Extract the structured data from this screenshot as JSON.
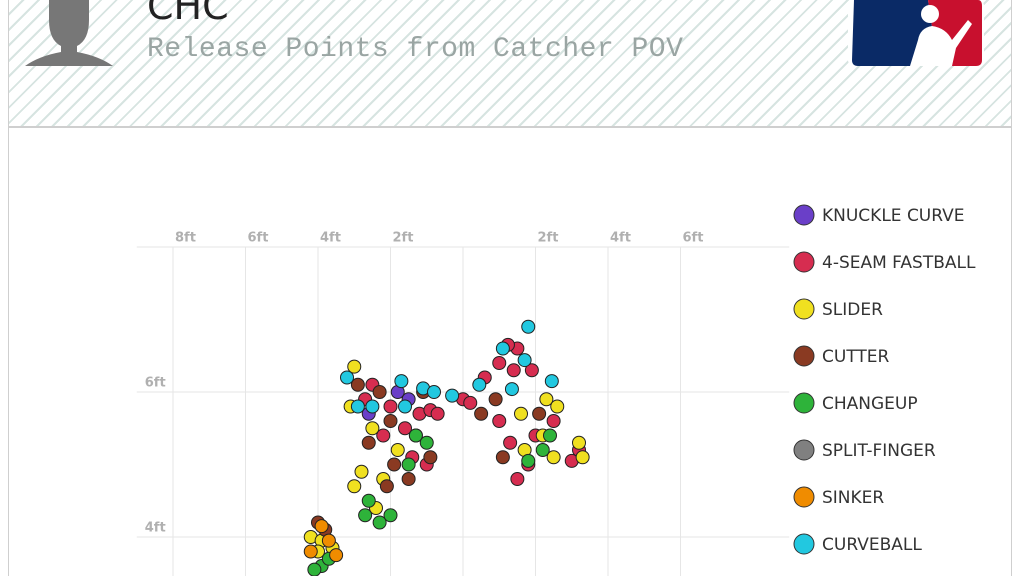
{
  "header": {
    "team": "CHC",
    "subtitle": "Release Points from Catcher POV"
  },
  "chart_data": {
    "type": "scatter",
    "xlim": [
      -9,
      9
    ],
    "ylim": [
      3.5,
      8
    ],
    "xticks": [
      {
        "value": -8,
        "label": "8ft"
      },
      {
        "value": -6,
        "label": "6ft"
      },
      {
        "value": -4,
        "label": "4ft"
      },
      {
        "value": -2,
        "label": "2ft"
      },
      {
        "value": 2,
        "label": "2ft"
      },
      {
        "value": 4,
        "label": "4ft"
      },
      {
        "value": 6,
        "label": "6ft"
      }
    ],
    "yticks": [
      {
        "value": 4,
        "label": "4ft"
      },
      {
        "value": 6,
        "label": "6ft"
      }
    ],
    "grid": true,
    "series": [
      {
        "name": "KNUCKLE CURVE",
        "color": "#6a3fc8",
        "x": [
          -1.8,
          -1.5,
          -2.6
        ],
        "values": [
          6.0,
          5.9,
          5.7
        ]
      },
      {
        "name": "4-SEAM FASTBALL",
        "color": "#d62d50",
        "x": [
          -2.5,
          -2.0,
          -1.2,
          -0.9,
          -0.7,
          -1.6,
          -2.2,
          -1.4,
          -1.0,
          -2.7,
          0.0,
          0.2,
          0.6,
          1.0,
          1.5,
          1.4,
          1.9,
          1.0,
          1.3,
          1.8,
          2.0,
          1.5,
          2.5,
          3.0,
          3.2,
          1.24
        ],
        "values": [
          6.1,
          5.8,
          5.7,
          5.75,
          5.7,
          5.5,
          5.4,
          5.1,
          5.0,
          5.9,
          5.9,
          5.85,
          6.2,
          6.4,
          6.6,
          6.3,
          6.3,
          5.6,
          5.3,
          5.0,
          5.4,
          4.8,
          5.6,
          5.05,
          5.2,
          6.65
        ]
      },
      {
        "name": "SLIDER",
        "color": "#f0e020",
        "x": [
          -3.0,
          -3.1,
          -2.5,
          -2.8,
          -3.0,
          -2.4,
          -1.8,
          -1.3,
          -2.2,
          -4.2,
          -3.9,
          -4.0,
          -3.6,
          1.6,
          2.3,
          2.6,
          2.2,
          1.7,
          3.2,
          3.3,
          2.5
        ],
        "values": [
          6.35,
          5.8,
          5.5,
          4.9,
          4.7,
          4.4,
          5.2,
          5.4,
          4.8,
          4.0,
          3.95,
          3.8,
          3.85,
          5.7,
          5.9,
          5.8,
          5.4,
          5.2,
          5.3,
          5.1,
          5.1
        ]
      },
      {
        "name": "CUTTER",
        "color": "#8a3a22",
        "x": [
          -2.9,
          -2.3,
          -2.0,
          -2.6,
          -1.9,
          -1.5,
          -2.1,
          -0.9,
          -1.1,
          -3.8,
          -4.0,
          0.5,
          0.9,
          1.1,
          2.1
        ],
        "values": [
          6.1,
          6.0,
          5.6,
          5.3,
          5.0,
          4.8,
          4.7,
          5.1,
          6.0,
          4.1,
          4.2,
          5.7,
          5.9,
          5.1,
          5.7
        ]
      },
      {
        "name": "CHANGEUP",
        "color": "#2eb33a",
        "x": [
          -2.6,
          -2.3,
          -2.0,
          -2.7,
          -1.3,
          -1.0,
          -1.5,
          -3.9,
          -4.1,
          -3.7,
          2.2,
          2.4,
          1.8
        ],
        "values": [
          4.5,
          4.2,
          4.3,
          4.3,
          5.4,
          5.3,
          5.0,
          3.6,
          3.55,
          3.7,
          5.2,
          5.4,
          5.05
        ]
      },
      {
        "name": "SPLIT-FINGER",
        "color": "#808080",
        "x": [],
        "values": []
      },
      {
        "name": "SINKER",
        "color": "#f08c00",
        "x": [
          -3.9,
          -4.2,
          -3.5,
          -3.7
        ],
        "values": [
          4.15,
          3.8,
          3.75,
          3.95
        ]
      },
      {
        "name": "CURVEBALL",
        "color": "#22c8e0",
        "x": [
          -3.2,
          -2.9,
          -1.7,
          -1.1,
          -0.8,
          -2.5,
          -1.6,
          -0.3,
          0.45,
          1.7,
          1.8,
          2.45,
          1.35,
          1.1
        ],
        "values": [
          6.2,
          5.8,
          6.15,
          6.05,
          6.0,
          5.8,
          5.8,
          5.95,
          6.1,
          6.44,
          6.9,
          6.15,
          6.04,
          6.6
        ]
      }
    ]
  }
}
